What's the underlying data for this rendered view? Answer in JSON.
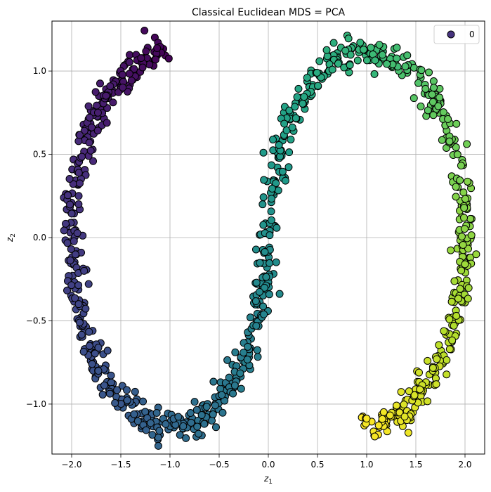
{
  "chart_data": {
    "type": "scatter",
    "title": "Classical Euclidean MDS = PCA",
    "xlabel": "z",
    "xlabel_sub": "1",
    "ylabel": "z",
    "ylabel_sub": "2",
    "xlim": [
      -2.2,
      2.2
    ],
    "ylim": [
      -1.3,
      1.3
    ],
    "xticks": [
      -2.0,
      -1.5,
      -1.0,
      -0.5,
      0.0,
      0.5,
      1.0,
      1.5,
      2.0
    ],
    "xtick_labels": [
      "−2.0",
      "−1.5",
      "−1.0",
      "−0.5",
      "0.0",
      "0.5",
      "1.0",
      "1.5",
      "2.0"
    ],
    "yticks": [
      -1.0,
      -0.5,
      0.0,
      0.5,
      1.0
    ],
    "ytick_labels": [
      "−1.0",
      "−0.5",
      "0.0",
      "0.5",
      "1.0"
    ],
    "grid": true,
    "colormap": "viridis",
    "marker_edge_color": "#000000",
    "legend": {
      "placement": "top-right",
      "entries": [
        "0"
      ],
      "marker_color": "#46337e"
    },
    "curve": {
      "description": "S-curve points colored by position along curve",
      "segments": [
        {
          "t_start": 0.0,
          "t_end": 0.5,
          "center_x": -1.0,
          "center_y": 0.0,
          "radius_x": 1.0,
          "radius_y": 1.0
        },
        {
          "t_start": 0.5,
          "t_end": 1.0,
          "center_x": 1.0,
          "center_y": 0.0,
          "radius_x": 1.0,
          "radius_y": 1.0
        }
      ],
      "n_points": 1000,
      "noise": 0.05,
      "seed": 7
    }
  }
}
